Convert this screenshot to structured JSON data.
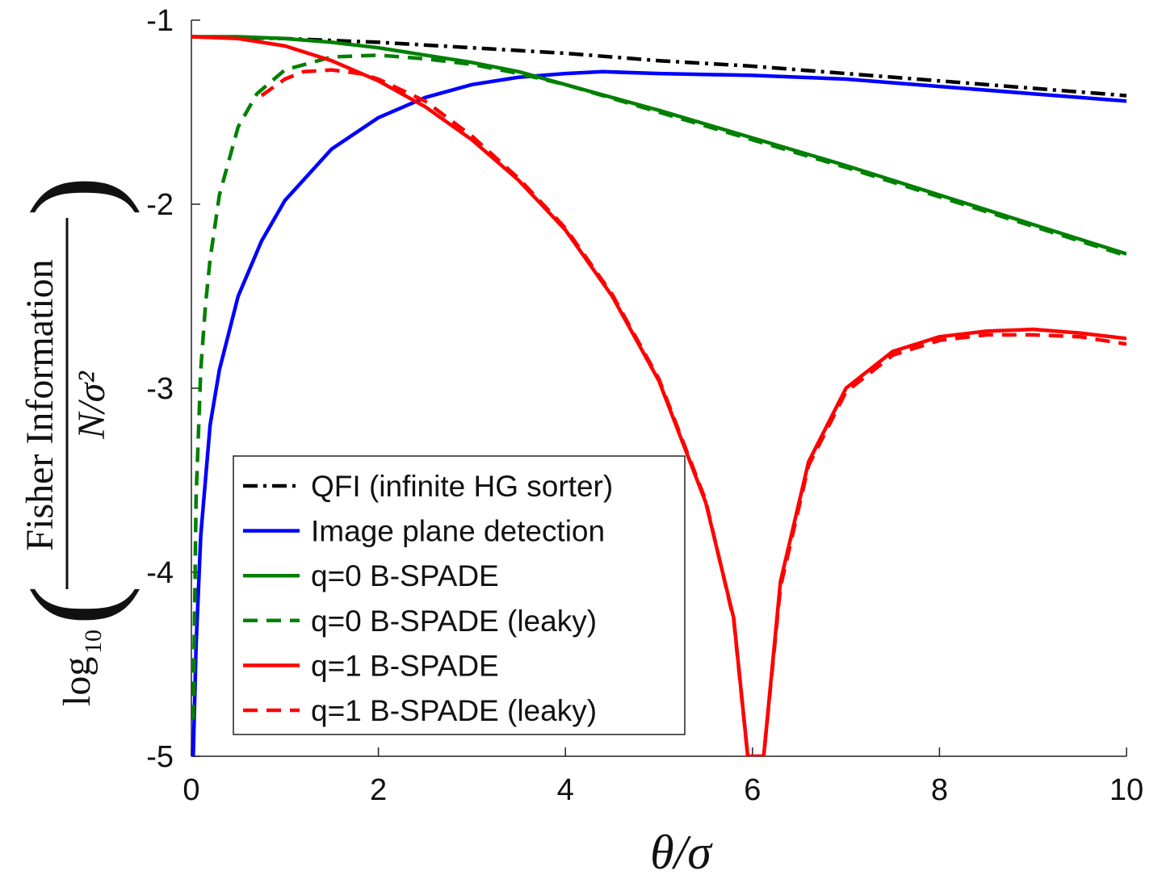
{
  "chart_data": {
    "type": "line",
    "xlabel": "θ/σ",
    "ylabel": {
      "prefix": "log",
      "prefix_sub": "10",
      "numerator": "Fisher Information",
      "denominator": "N/σ²"
    },
    "xlim": [
      0,
      10
    ],
    "ylim": [
      -5,
      -1
    ],
    "xticks": [
      "0",
      "2",
      "4",
      "6",
      "8",
      "10"
    ],
    "yticks": [
      "-1",
      "-2",
      "-3",
      "-4",
      "-5"
    ],
    "grid": false,
    "legend_position": "bottom-left",
    "series": [
      {
        "name": "QFI (infinite HG sorter)",
        "color": "#000000",
        "style": "dashdot",
        "x": [
          0,
          1,
          2,
          3,
          4,
          5,
          6,
          7,
          8,
          9,
          10
        ],
        "y": [
          -1.09,
          -1.1,
          -1.12,
          -1.15,
          -1.18,
          -1.22,
          -1.25,
          -1.29,
          -1.33,
          -1.37,
          -1.41
        ]
      },
      {
        "name": "Image plane detection",
        "color": "#0000ff",
        "style": "solid",
        "x": [
          0.02,
          0.05,
          0.1,
          0.2,
          0.3,
          0.5,
          0.75,
          1.0,
          1.5,
          2.0,
          2.5,
          3.0,
          3.5,
          4.0,
          4.4,
          5.0,
          6.0,
          7.0,
          8.0,
          9.0,
          10.0
        ],
        "y": [
          -5.0,
          -4.4,
          -3.8,
          -3.2,
          -2.9,
          -2.5,
          -2.2,
          -1.98,
          -1.7,
          -1.53,
          -1.42,
          -1.35,
          -1.31,
          -1.29,
          -1.28,
          -1.29,
          -1.3,
          -1.32,
          -1.36,
          -1.4,
          -1.44
        ]
      },
      {
        "name": "q=0 B-SPADE",
        "color": "#008000",
        "style": "solid",
        "x": [
          0,
          0.5,
          1,
          1.5,
          2,
          2.5,
          3,
          3.5,
          4,
          4.5,
          5,
          6,
          7,
          8,
          9,
          10
        ],
        "y": [
          -1.09,
          -1.09,
          -1.1,
          -1.12,
          -1.15,
          -1.19,
          -1.23,
          -1.28,
          -1.35,
          -1.42,
          -1.49,
          -1.64,
          -1.79,
          -1.95,
          -2.11,
          -2.27
        ]
      },
      {
        "name": "q=0 B-SPADE (leaky)",
        "color": "#008000",
        "style": "dashed",
        "x": [
          0.02,
          0.05,
          0.1,
          0.15,
          0.2,
          0.3,
          0.5,
          0.7,
          1.0,
          1.5,
          2.0,
          2.5,
          3.0,
          3.5,
          4.0,
          5.0,
          6.0,
          7.0,
          8.0,
          9.0,
          10.0
        ],
        "y": [
          -4.8,
          -3.6,
          -2.9,
          -2.55,
          -2.3,
          -1.95,
          -1.58,
          -1.4,
          -1.27,
          -1.2,
          -1.19,
          -1.21,
          -1.24,
          -1.29,
          -1.35,
          -1.5,
          -1.65,
          -1.8,
          -1.96,
          -2.12,
          -2.28
        ]
      },
      {
        "name": "q=1 B-SPADE",
        "color": "#ff0000",
        "style": "solid",
        "x": [
          0,
          0.5,
          1.0,
          1.5,
          2.0,
          2.5,
          3.0,
          3.5,
          4.0,
          4.5,
          5.0,
          5.5,
          5.8,
          5.95,
          6.12,
          6.3,
          6.6,
          7.0,
          7.5,
          8.0,
          8.5,
          9.0,
          9.5,
          10.0
        ],
        "y": [
          -1.09,
          -1.1,
          -1.14,
          -1.22,
          -1.33,
          -1.47,
          -1.65,
          -1.87,
          -2.14,
          -2.5,
          -2.96,
          -3.62,
          -4.25,
          -5.0,
          -5.0,
          -4.05,
          -3.4,
          -3.0,
          -2.8,
          -2.72,
          -2.69,
          -2.68,
          -2.7,
          -2.73
        ]
      },
      {
        "name": "q=1 B-SPADE (leaky)",
        "color": "#ff0000",
        "style": "dashed",
        "x": [
          0.75,
          1.0,
          1.2,
          1.5,
          1.8,
          2.0,
          2.5,
          3.0,
          3.5,
          4.0,
          4.5,
          5.0,
          5.5,
          5.8,
          5.95,
          6.12,
          6.3,
          6.6,
          7.0,
          7.5,
          8.0,
          8.5,
          9.0,
          9.5,
          10.0
        ],
        "y": [
          -1.41,
          -1.32,
          -1.28,
          -1.27,
          -1.29,
          -1.32,
          -1.44,
          -1.63,
          -1.86,
          -2.13,
          -2.49,
          -2.95,
          -3.61,
          -4.26,
          -5.0,
          -5.0,
          -4.08,
          -3.42,
          -3.02,
          -2.82,
          -2.74,
          -2.71,
          -2.71,
          -2.72,
          -2.76
        ]
      }
    ]
  }
}
